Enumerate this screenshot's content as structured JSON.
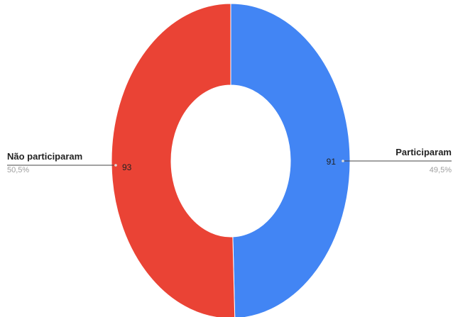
{
  "chart_data": {
    "type": "pie",
    "donut": true,
    "legend": "none",
    "slices": [
      {
        "label": "Participaram",
        "value": 91,
        "percent_label": "49,5%",
        "value_label": "91",
        "color": "#4285f4"
      },
      {
        "label": "Não participaram",
        "value": 93,
        "percent_label": "50,5%",
        "value_label": "93",
        "color": "#ea4335"
      }
    ]
  }
}
